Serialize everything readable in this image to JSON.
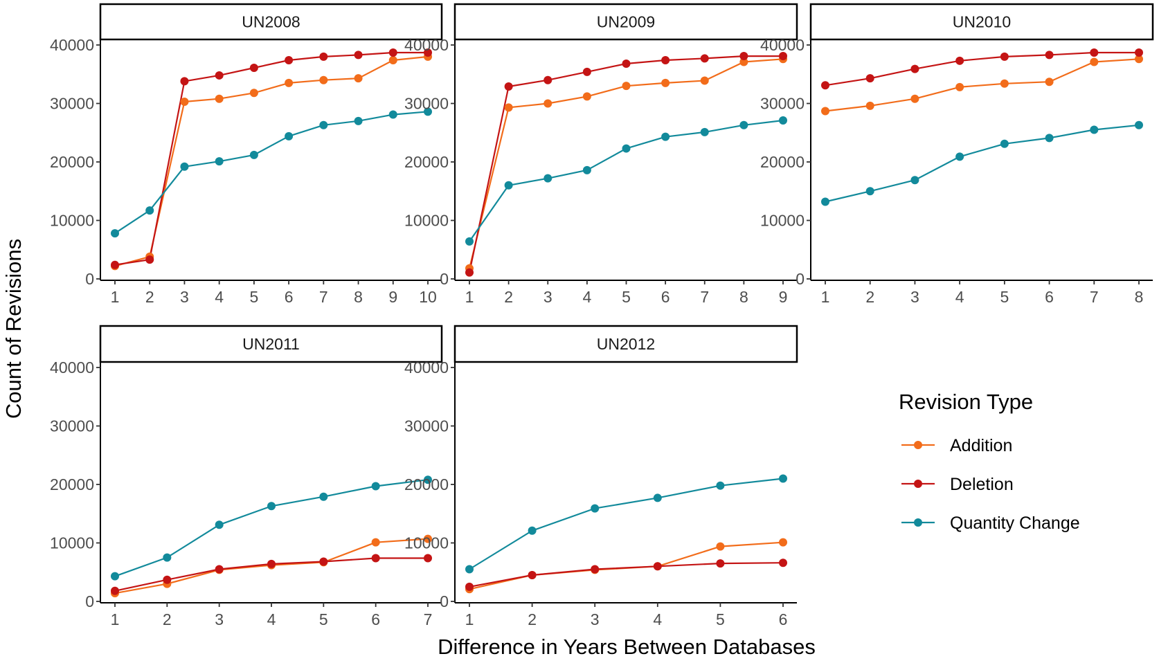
{
  "chart_data": {
    "type": "line",
    "xlabel": "Difference in Years Between Databases",
    "ylabel": "Count of Revisions",
    "ylim": [
      0,
      40000
    ],
    "yticks": [
      0,
      10000,
      20000,
      30000,
      40000
    ],
    "grid": false,
    "legend": {
      "title": "Revision Type",
      "placement": "right",
      "entries": [
        "Addition",
        "Deletion",
        "Quantity Change"
      ]
    },
    "colors": {
      "Addition": "#f26c1a",
      "Deletion": "#c41414",
      "Quantity Change": "#128a9b"
    },
    "panels": [
      {
        "title": "UN2008",
        "x": [
          1,
          2,
          3,
          4,
          5,
          6,
          7,
          8,
          9,
          10
        ],
        "series": [
          {
            "name": "Addition",
            "values": [
              2200,
              3800,
              30300,
              30800,
              31800,
              33500,
              34000,
              34300,
              37400,
              38000
            ]
          },
          {
            "name": "Deletion",
            "values": [
              2400,
              3300,
              33800,
              34800,
              36100,
              37400,
              38000,
              38300,
              38700,
              38700
            ]
          },
          {
            "name": "Quantity Change",
            "values": [
              7800,
              11700,
              19200,
              20100,
              21200,
              24400,
              26300,
              27000,
              28100,
              28600
            ]
          }
        ]
      },
      {
        "title": "UN2009",
        "x": [
          1,
          2,
          3,
          4,
          5,
          6,
          7,
          8,
          9
        ],
        "series": [
          {
            "name": "Addition",
            "values": [
              1800,
              29300,
              30000,
              31200,
              33000,
              33500,
              33900,
              37100,
              37600
            ]
          },
          {
            "name": "Deletion",
            "values": [
              1100,
              32900,
              34000,
              35400,
              36800,
              37400,
              37700,
              38100,
              38100
            ]
          },
          {
            "name": "Quantity Change",
            "values": [
              6400,
              16000,
              17200,
              18600,
              22300,
              24300,
              25100,
              26300,
              27100
            ]
          }
        ]
      },
      {
        "title": "UN2010",
        "x": [
          1,
          2,
          3,
          4,
          5,
          6,
          7,
          8
        ],
        "series": [
          {
            "name": "Addition",
            "values": [
              28700,
              29600,
              30800,
              32800,
              33400,
              33700,
              37100,
              37600
            ]
          },
          {
            "name": "Deletion",
            "values": [
              33100,
              34300,
              35900,
              37300,
              38000,
              38300,
              38700,
              38700
            ]
          },
          {
            "name": "Quantity Change",
            "values": [
              13200,
              15000,
              16900,
              20900,
              23100,
              24100,
              25500,
              26300
            ]
          }
        ]
      },
      {
        "title": "UN2011",
        "x": [
          1,
          2,
          3,
          4,
          5,
          6,
          7
        ],
        "series": [
          {
            "name": "Addition",
            "values": [
              1400,
              3000,
              5400,
              6200,
              6700,
              10100,
              10700
            ]
          },
          {
            "name": "Deletion",
            "values": [
              1800,
              3700,
              5500,
              6400,
              6800,
              7400,
              7400
            ]
          },
          {
            "name": "Quantity Change",
            "values": [
              4300,
              7500,
              13100,
              16300,
              17900,
              19700,
              20800
            ]
          }
        ]
      },
      {
        "title": "UN2012",
        "x": [
          1,
          2,
          3,
          4,
          5,
          6
        ],
        "series": [
          {
            "name": "Addition",
            "values": [
              2100,
              4500,
              5400,
              6000,
              9400,
              10100
            ]
          },
          {
            "name": "Deletion",
            "values": [
              2500,
              4500,
              5500,
              6000,
              6500,
              6600
            ]
          },
          {
            "name": "Quantity Change",
            "values": [
              5500,
              12100,
              15900,
              17700,
              19800,
              21000
            ]
          }
        ]
      }
    ]
  }
}
